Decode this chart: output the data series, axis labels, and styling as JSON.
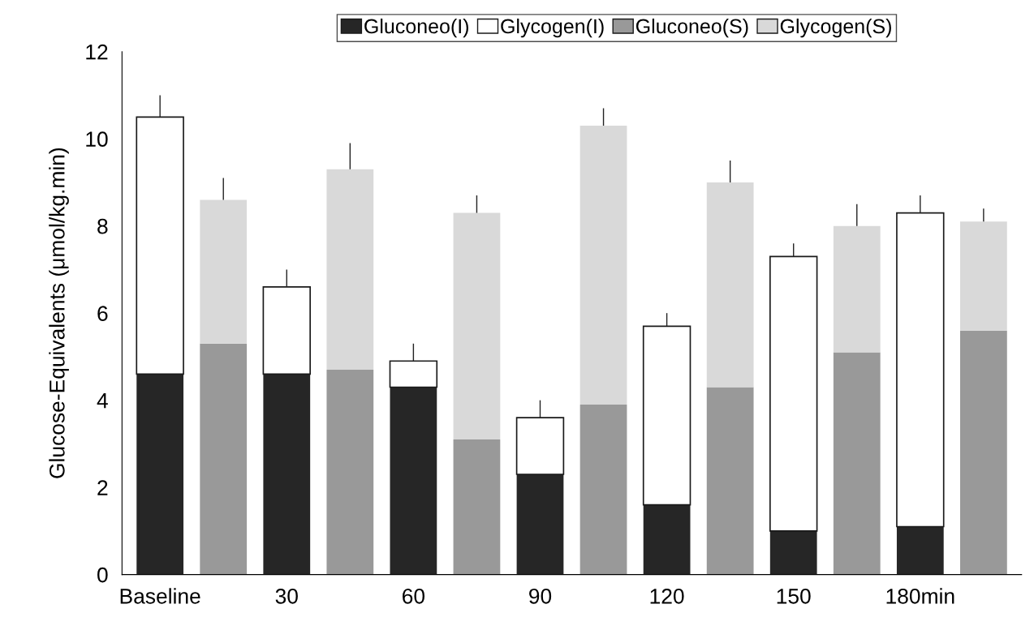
{
  "chart_data": {
    "type": "bar",
    "stacked": true,
    "ylabel": "Glucose-Equivalents (μmol/kg.min)",
    "categories": [
      "Baseline",
      null,
      "30",
      null,
      "60",
      null,
      "90",
      null,
      "120",
      null,
      "150",
      null,
      "180min",
      null
    ],
    "series": [
      {
        "name": "Gluconeo(I)",
        "color": "#262626",
        "values": [
          4.6,
          null,
          4.6,
          null,
          4.3,
          null,
          2.3,
          null,
          1.6,
          null,
          1.0,
          null,
          1.1,
          null
        ]
      },
      {
        "name": "Glycogen(I)",
        "color": "#ffffff",
        "values": [
          5.9,
          null,
          2.0,
          null,
          0.6,
          null,
          1.3,
          null,
          4.1,
          null,
          6.3,
          null,
          7.2,
          null
        ],
        "errors": [
          [
            10.5,
            11.0
          ],
          null,
          [
            6.6,
            7.0
          ],
          null,
          [
            4.9,
            5.3
          ],
          null,
          [
            3.6,
            4.0
          ],
          null,
          [
            5.7,
            6.0
          ],
          null,
          [
            7.3,
            7.6
          ],
          null,
          [
            8.3,
            8.7
          ],
          null
        ]
      },
      {
        "name": "Gluconeo(S)",
        "color": "#999999",
        "values": [
          null,
          5.3,
          null,
          4.7,
          null,
          3.1,
          null,
          3.9,
          null,
          4.3,
          null,
          5.1,
          null,
          5.6
        ]
      },
      {
        "name": "Glycogen(S)",
        "color": "#d9d9d9",
        "values": [
          null,
          3.3,
          null,
          4.6,
          null,
          5.2,
          null,
          6.4,
          null,
          4.7,
          null,
          2.9,
          null,
          2.5
        ],
        "errors": [
          null,
          [
            8.6,
            9.1
          ],
          null,
          [
            9.3,
            9.9
          ],
          null,
          [
            8.3,
            8.7
          ],
          null,
          [
            10.3,
            10.7
          ],
          null,
          [
            9.0,
            9.5
          ],
          null,
          [
            8.0,
            8.5
          ],
          null,
          [
            8.1,
            8.4
          ]
        ]
      }
    ],
    "ylim": [
      0,
      12
    ],
    "yticks": [
      0,
      2,
      4,
      6,
      8,
      10,
      12
    ],
    "grid": false,
    "legend": "top"
  }
}
